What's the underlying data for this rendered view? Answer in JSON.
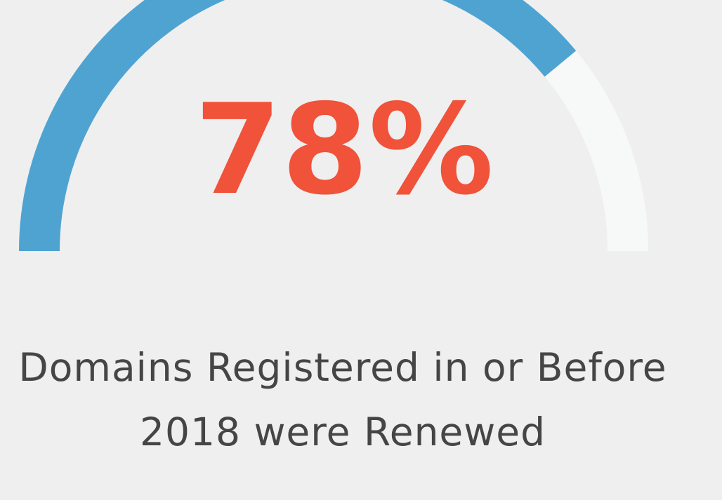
{
  "chart_data": {
    "type": "gauge",
    "values": [
      78
    ],
    "value_labels": [
      "78%"
    ],
    "ylim": [
      0,
      100
    ],
    "color": "#4fa3d1",
    "track_color": "#f7f8f8",
    "label_color": "#f0523a",
    "label": "Domains Registered in or Before 2018 were Renewed"
  }
}
